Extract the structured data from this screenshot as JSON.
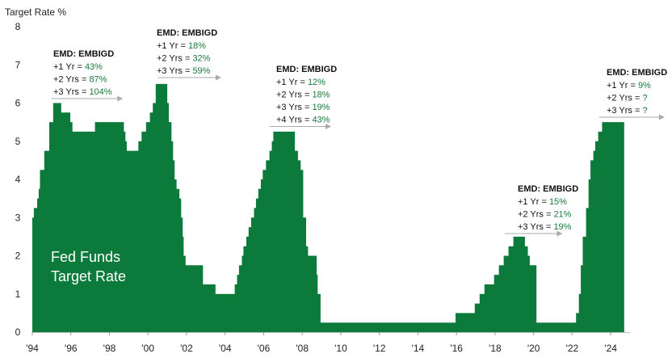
{
  "chart_data": {
    "type": "area",
    "ylabel": "Target Rate  %",
    "ylim": [
      0,
      8
    ],
    "yticks": [
      0,
      1,
      2,
      3,
      4,
      5,
      6,
      7,
      8
    ],
    "xlim": [
      1994.0,
      2025.0
    ],
    "xticks": [
      {
        "v": 1994,
        "label": "'94"
      },
      {
        "v": 1996,
        "label": "'96"
      },
      {
        "v": 1998,
        "label": "'98"
      },
      {
        "v": 2000,
        "label": "'00"
      },
      {
        "v": 2002,
        "label": "'02"
      },
      {
        "v": 2004,
        "label": "'04"
      },
      {
        "v": 2006,
        "label": "'06"
      },
      {
        "v": 2008,
        "label": "'08"
      },
      {
        "v": 2010,
        "label": "'10"
      },
      {
        "v": 2012,
        "label": "'12"
      },
      {
        "v": 2014,
        "label": "'14"
      },
      {
        "v": 2016,
        "label": "'16"
      },
      {
        "v": 2018,
        "label": "'18"
      },
      {
        "v": 2020,
        "label": "'20"
      },
      {
        "v": 2022,
        "label": "'22"
      },
      {
        "v": 2024,
        "label": "'24"
      }
    ],
    "fill_color": "#0b7a3b",
    "annotation_value_color": "#1a7a3a",
    "arrow_color": "#aaaaaa",
    "series": [
      {
        "name": "Fed Funds Target Rate",
        "steps": [
          [
            1994.0,
            3.0
          ],
          [
            1994.08,
            3.25
          ],
          [
            1994.25,
            3.5
          ],
          [
            1994.33,
            3.75
          ],
          [
            1994.4,
            4.25
          ],
          [
            1994.62,
            4.75
          ],
          [
            1994.88,
            5.5
          ],
          [
            1995.08,
            6.0
          ],
          [
            1995.5,
            5.75
          ],
          [
            1995.97,
            5.5
          ],
          [
            1996.08,
            5.25
          ],
          [
            1997.25,
            5.5
          ],
          [
            1998.75,
            5.25
          ],
          [
            1998.83,
            5.0
          ],
          [
            1998.9,
            4.75
          ],
          [
            1999.5,
            5.0
          ],
          [
            1999.67,
            5.25
          ],
          [
            1999.9,
            5.5
          ],
          [
            2000.1,
            5.75
          ],
          [
            2000.25,
            6.0
          ],
          [
            2000.4,
            6.5
          ],
          [
            2001.0,
            6.0
          ],
          [
            2001.08,
            5.5
          ],
          [
            2001.22,
            5.0
          ],
          [
            2001.3,
            4.5
          ],
          [
            2001.38,
            4.0
          ],
          [
            2001.48,
            3.75
          ],
          [
            2001.63,
            3.5
          ],
          [
            2001.72,
            3.0
          ],
          [
            2001.8,
            2.5
          ],
          [
            2001.85,
            2.0
          ],
          [
            2001.95,
            1.75
          ],
          [
            2002.85,
            1.25
          ],
          [
            2003.5,
            1.0
          ],
          [
            2004.5,
            1.25
          ],
          [
            2004.62,
            1.5
          ],
          [
            2004.72,
            1.75
          ],
          [
            2004.87,
            2.0
          ],
          [
            2004.95,
            2.25
          ],
          [
            2005.1,
            2.5
          ],
          [
            2005.22,
            2.75
          ],
          [
            2005.35,
            3.0
          ],
          [
            2005.5,
            3.25
          ],
          [
            2005.6,
            3.5
          ],
          [
            2005.72,
            3.75
          ],
          [
            2005.85,
            4.0
          ],
          [
            2005.95,
            4.25
          ],
          [
            2006.12,
            4.5
          ],
          [
            2006.3,
            4.75
          ],
          [
            2006.42,
            5.0
          ],
          [
            2006.5,
            5.25
          ],
          [
            2007.62,
            4.75
          ],
          [
            2007.78,
            4.5
          ],
          [
            2007.92,
            4.25
          ],
          [
            2008.05,
            3.0
          ],
          [
            2008.2,
            2.25
          ],
          [
            2008.3,
            2.0
          ],
          [
            2008.75,
            1.5
          ],
          [
            2008.8,
            1.0
          ],
          [
            2008.95,
            0.25
          ],
          [
            2015.95,
            0.5
          ],
          [
            2016.95,
            0.75
          ],
          [
            2017.2,
            1.0
          ],
          [
            2017.45,
            1.25
          ],
          [
            2017.95,
            1.5
          ],
          [
            2018.2,
            1.75
          ],
          [
            2018.45,
            2.0
          ],
          [
            2018.7,
            2.25
          ],
          [
            2018.95,
            2.5
          ],
          [
            2019.55,
            2.25
          ],
          [
            2019.7,
            2.0
          ],
          [
            2019.8,
            1.75
          ],
          [
            2020.15,
            0.25
          ],
          [
            2022.2,
            0.5
          ],
          [
            2022.35,
            1.0
          ],
          [
            2022.45,
            1.75
          ],
          [
            2022.55,
            2.5
          ],
          [
            2022.72,
            3.25
          ],
          [
            2022.85,
            4.0
          ],
          [
            2022.95,
            4.5
          ],
          [
            2023.1,
            4.75
          ],
          [
            2023.2,
            5.0
          ],
          [
            2023.35,
            5.25
          ],
          [
            2023.55,
            5.5
          ],
          [
            2024.7,
            5.5
          ]
        ]
      }
    ],
    "overlay_label": [
      "Fed Funds",
      "Target Rate"
    ],
    "annotations": [
      {
        "title": "EMD: EMBIGD",
        "lines": [
          {
            "label": "+1 Yr = ",
            "value": "43%"
          },
          {
            "label": "+2 Yrs = ",
            "value": "87%"
          },
          {
            "label": "+3 Yrs = ",
            "value": "104%"
          }
        ],
        "arrow": [
          1995.0,
          1998.7
        ]
      },
      {
        "title": "EMD: EMBIGD",
        "lines": [
          {
            "label": "+1 Yr = ",
            "value": "18%"
          },
          {
            "label": "+2 Yrs = ",
            "value": "32%"
          },
          {
            "label": "+3 Yrs = ",
            "value": "59%"
          }
        ],
        "arrow": [
          2000.5,
          2003.8
        ]
      },
      {
        "title": "EMD: EMBIGD",
        "lines": [
          {
            "label": "+1 Yr = ",
            "value": "12%"
          },
          {
            "label": "+2 Yrs = ",
            "value": "18%"
          },
          {
            "label": "+3 Yrs = ",
            "value": "19%"
          },
          {
            "label": "+4 Yrs = ",
            "value": "43%"
          }
        ],
        "arrow": [
          2006.3,
          2009.5
        ]
      },
      {
        "title": "EMD: EMBIGD",
        "lines": [
          {
            "label": "+1 Yr = ",
            "value": "15%"
          },
          {
            "label": "+2 Yrs = ",
            "value": "21%"
          },
          {
            "label": "+3 Yrs = ",
            "value": "19%"
          }
        ],
        "arrow": [
          2018.5,
          2021.5
        ]
      },
      {
        "title": "EMD: EMBIGD",
        "lines": [
          {
            "label": "+1 Yr = ",
            "value": "9%"
          },
          {
            "label": "+2 Yrs = ",
            "value": "?"
          },
          {
            "label": "+3 Yrs = ",
            "value": "?"
          }
        ],
        "arrow": [
          2023.4,
          2026.8
        ]
      }
    ]
  }
}
